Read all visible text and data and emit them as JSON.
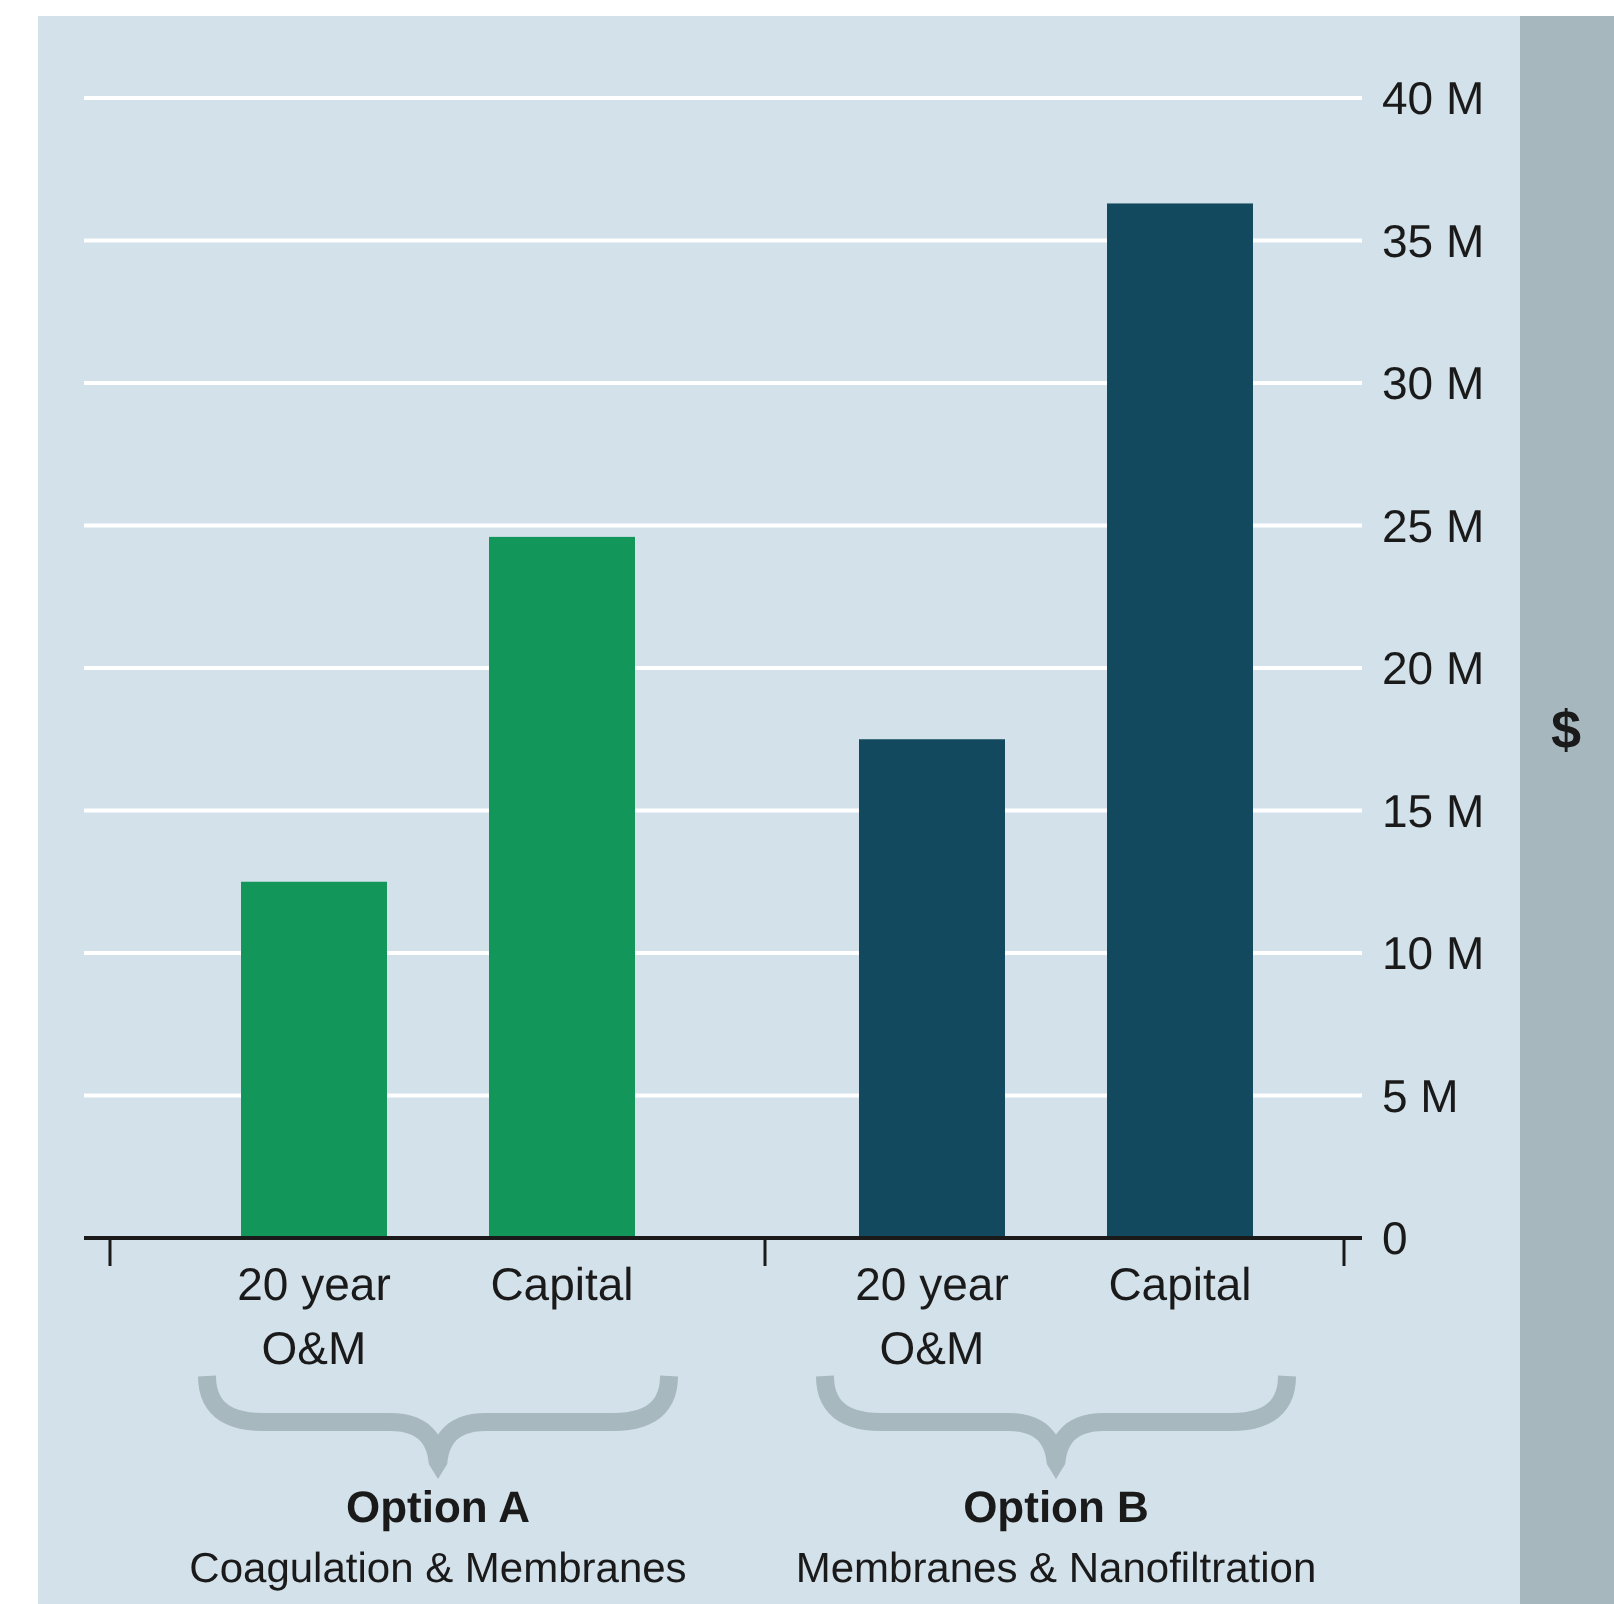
{
  "chart_data": {
    "type": "bar",
    "categories": [
      "20 year O&M",
      "Capital",
      "20 year O&M",
      "Capital"
    ],
    "values": [
      12.5,
      24.6,
      17.5,
      36.3
    ],
    "colors": [
      "#12965a",
      "#12965a",
      "#12495e",
      "#12495e"
    ],
    "ylabel": "$",
    "ylim": [
      0,
      40
    ],
    "yticks": [
      0,
      {
        "value": 5,
        "label": "5 M"
      },
      {
        "value": 10,
        "label": "10 M"
      },
      {
        "value": 15,
        "label": "15 M"
      },
      {
        "value": 20,
        "label": "20 M"
      },
      {
        "value": 25,
        "label": "25 M"
      },
      {
        "value": 30,
        "label": "30 M"
      },
      {
        "value": 35,
        "label": "35 M"
      },
      {
        "value": 40,
        "label": "40 M"
      }
    ],
    "grid": "y",
    "annotations": [
      "Option A",
      "Coagulation & Membranes",
      "Option B",
      "Membranes & Nanofiltration"
    ]
  }
}
